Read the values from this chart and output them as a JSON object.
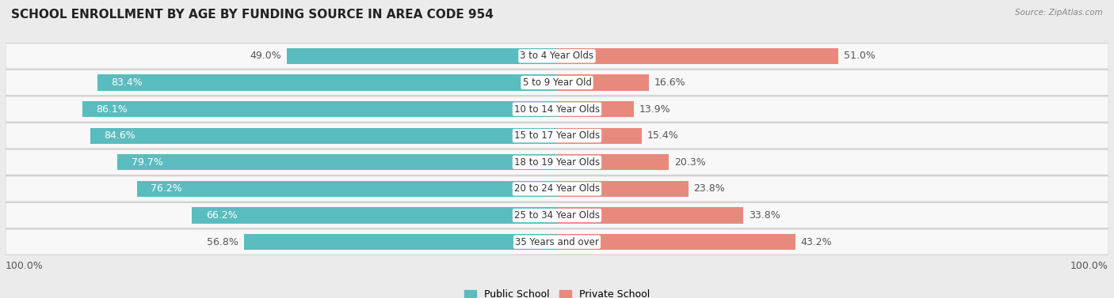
{
  "title": "SCHOOL ENROLLMENT BY AGE BY FUNDING SOURCE IN AREA CODE 954",
  "source": "Source: ZipAtlas.com",
  "categories": [
    "3 to 4 Year Olds",
    "5 to 9 Year Old",
    "10 to 14 Year Olds",
    "15 to 17 Year Olds",
    "18 to 19 Year Olds",
    "20 to 24 Year Olds",
    "25 to 34 Year Olds",
    "35 Years and over"
  ],
  "public_values": [
    49.0,
    83.4,
    86.1,
    84.6,
    79.7,
    76.2,
    66.2,
    56.8
  ],
  "private_values": [
    51.0,
    16.6,
    13.9,
    15.4,
    20.3,
    23.8,
    33.8,
    43.2
  ],
  "public_color": "#5bbcbf",
  "private_color": "#e8897e",
  "public_label": "Public School",
  "private_label": "Private School",
  "bg_color": "#ebebeb",
  "row_bg_color": "#f8f8f8",
  "axis_label_left": "100.0%",
  "axis_label_right": "100.0%",
  "title_fontsize": 11,
  "bar_label_fontsize": 9,
  "category_fontsize": 8.5,
  "legend_fontsize": 9
}
